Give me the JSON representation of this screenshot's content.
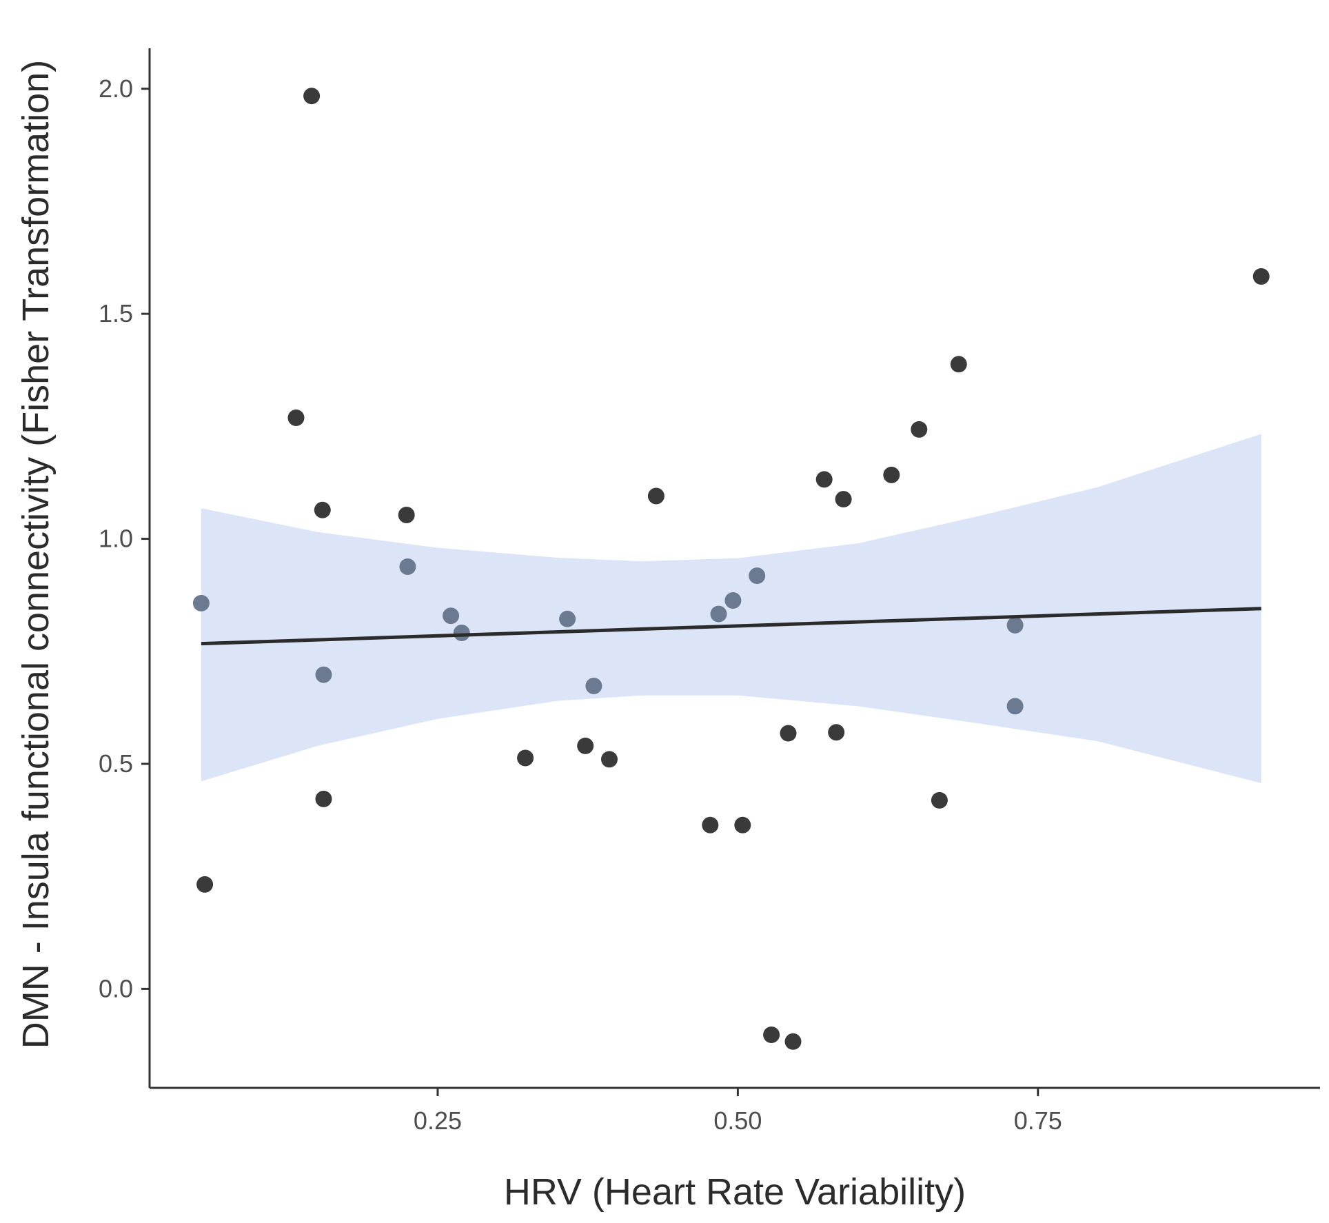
{
  "chart_data": {
    "type": "scatter",
    "title": "",
    "xlabel": "HRV (Heart Rate Variability)",
    "ylabel": "DMN - Insula functional connectivity (Fisher Transformation)",
    "xlim": [
      0.01,
      0.985
    ],
    "ylim": [
      -0.22,
      2.09
    ],
    "x_ticks": [
      0.25,
      0.5,
      0.75
    ],
    "x_tick_labels": [
      "0.25",
      "0.50",
      "0.75"
    ],
    "y_ticks": [
      0.0,
      0.5,
      1.0,
      1.5,
      2.0
    ],
    "y_tick_labels": [
      "0.0",
      "0.5",
      "1.0",
      "1.5",
      "2.0"
    ],
    "grid": false,
    "colors": {
      "point": "#3a3a3a",
      "point_in_band": "#6b7a91",
      "fit_line": "#2b2b2b",
      "ci_band": "#dbe5f7",
      "axis": "#333333"
    },
    "points": [
      {
        "x": 0.053,
        "y": 0.857
      },
      {
        "x": 0.056,
        "y": 0.232
      },
      {
        "x": 0.132,
        "y": 1.269
      },
      {
        "x": 0.145,
        "y": 1.984
      },
      {
        "x": 0.154,
        "y": 1.064
      },
      {
        "x": 0.155,
        "y": 0.698
      },
      {
        "x": 0.155,
        "y": 0.422
      },
      {
        "x": 0.224,
        "y": 1.053
      },
      {
        "x": 0.225,
        "y": 0.938
      },
      {
        "x": 0.261,
        "y": 0.829
      },
      {
        "x": 0.27,
        "y": 0.791
      },
      {
        "x": 0.323,
        "y": 0.513
      },
      {
        "x": 0.358,
        "y": 0.822
      },
      {
        "x": 0.373,
        "y": 0.54
      },
      {
        "x": 0.38,
        "y": 0.673
      },
      {
        "x": 0.393,
        "y": 0.51
      },
      {
        "x": 0.432,
        "y": 1.095
      },
      {
        "x": 0.477,
        "y": 0.364
      },
      {
        "x": 0.484,
        "y": 0.833
      },
      {
        "x": 0.496,
        "y": 0.863
      },
      {
        "x": 0.504,
        "y": 0.364
      },
      {
        "x": 0.516,
        "y": 0.918
      },
      {
        "x": 0.528,
        "y": -0.102
      },
      {
        "x": 0.542,
        "y": 0.568
      },
      {
        "x": 0.546,
        "y": -0.117
      },
      {
        "x": 0.572,
        "y": 1.132
      },
      {
        "x": 0.582,
        "y": 0.57
      },
      {
        "x": 0.588,
        "y": 1.088
      },
      {
        "x": 0.628,
        "y": 1.142
      },
      {
        "x": 0.651,
        "y": 1.243
      },
      {
        "x": 0.668,
        "y": 0.419
      },
      {
        "x": 0.684,
        "y": 1.388
      },
      {
        "x": 0.731,
        "y": 0.808
      },
      {
        "x": 0.731,
        "y": 0.628
      },
      {
        "x": 0.936,
        "y": 1.583
      }
    ],
    "fit_line": {
      "x": [
        0.053,
        0.936
      ],
      "y": [
        0.767,
        0.845
      ]
    },
    "confidence_band": {
      "x": [
        0.053,
        0.15,
        0.25,
        0.35,
        0.42,
        0.5,
        0.6,
        0.7,
        0.8,
        0.936
      ],
      "upper": [
        1.068,
        1.015,
        0.98,
        0.958,
        0.95,
        0.957,
        0.99,
        1.05,
        1.115,
        1.233
      ],
      "lower": [
        0.461,
        0.54,
        0.6,
        0.64,
        0.652,
        0.652,
        0.628,
        0.59,
        0.55,
        0.457
      ]
    }
  }
}
